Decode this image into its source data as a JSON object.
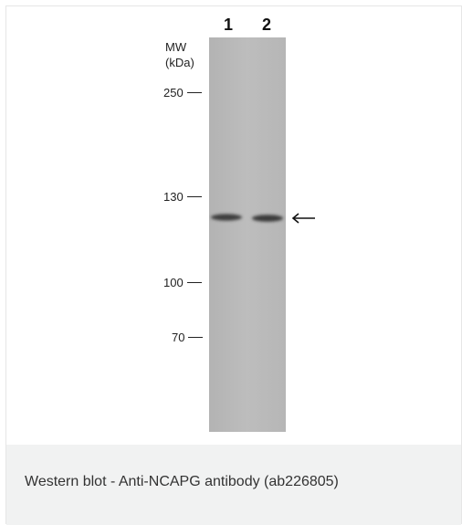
{
  "figure": {
    "lanes": [
      {
        "label": "1"
      },
      {
        "label": "2"
      }
    ],
    "mw_header_line1": "MW",
    "mw_header_line2": "(kDa)",
    "markers": [
      {
        "label": "250"
      },
      {
        "label": "130"
      },
      {
        "label": "100"
      },
      {
        "label": "70"
      }
    ],
    "band_arrow": "arrow-left-icon",
    "colors": {
      "membrane": "#b9b9b9",
      "band": "#3e3e3e"
    }
  },
  "caption": {
    "text": "Western blot - Anti-NCAPG antibody (ab226805)"
  }
}
